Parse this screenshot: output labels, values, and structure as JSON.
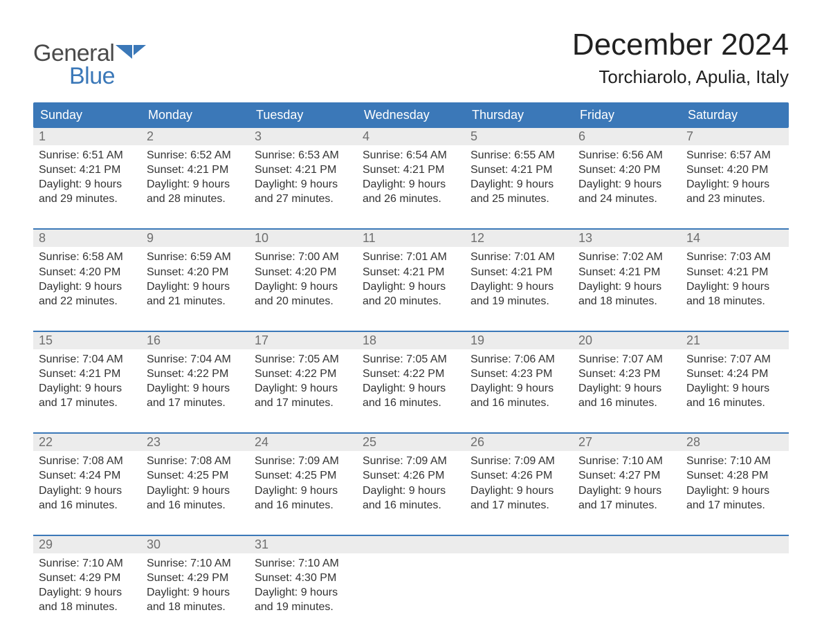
{
  "brand": {
    "word1": "General",
    "word2": "Blue",
    "accent": "#3b78b8",
    "text": "#4a4a4a"
  },
  "title": "December 2024",
  "location": "Torchiarolo, Apulia, Italy",
  "colors": {
    "header_bg": "#3b78b8",
    "header_text": "#ffffff",
    "daynum_bg": "#ececec",
    "daynum_text": "#6e6e6e",
    "body_text": "#323232",
    "week_divider": "#3b78b8",
    "page_bg": "#ffffff"
  },
  "fonts": {
    "title_pt": 44,
    "location_pt": 26,
    "weekday_pt": 18,
    "daynum_pt": 18,
    "cell_pt": 16
  },
  "weekdays": [
    "Sunday",
    "Monday",
    "Tuesday",
    "Wednesday",
    "Thursday",
    "Friday",
    "Saturday"
  ],
  "weeks": [
    [
      {
        "n": "1",
        "sunrise": "6:51 AM",
        "sunset": "4:21 PM",
        "daylight": "9 hours and 29 minutes."
      },
      {
        "n": "2",
        "sunrise": "6:52 AM",
        "sunset": "4:21 PM",
        "daylight": "9 hours and 28 minutes."
      },
      {
        "n": "3",
        "sunrise": "6:53 AM",
        "sunset": "4:21 PM",
        "daylight": "9 hours and 27 minutes."
      },
      {
        "n": "4",
        "sunrise": "6:54 AM",
        "sunset": "4:21 PM",
        "daylight": "9 hours and 26 minutes."
      },
      {
        "n": "5",
        "sunrise": "6:55 AM",
        "sunset": "4:21 PM",
        "daylight": "9 hours and 25 minutes."
      },
      {
        "n": "6",
        "sunrise": "6:56 AM",
        "sunset": "4:20 PM",
        "daylight": "9 hours and 24 minutes."
      },
      {
        "n": "7",
        "sunrise": "6:57 AM",
        "sunset": "4:20 PM",
        "daylight": "9 hours and 23 minutes."
      }
    ],
    [
      {
        "n": "8",
        "sunrise": "6:58 AM",
        "sunset": "4:20 PM",
        "daylight": "9 hours and 22 minutes."
      },
      {
        "n": "9",
        "sunrise": "6:59 AM",
        "sunset": "4:20 PM",
        "daylight": "9 hours and 21 minutes."
      },
      {
        "n": "10",
        "sunrise": "7:00 AM",
        "sunset": "4:20 PM",
        "daylight": "9 hours and 20 minutes."
      },
      {
        "n": "11",
        "sunrise": "7:01 AM",
        "sunset": "4:21 PM",
        "daylight": "9 hours and 20 minutes."
      },
      {
        "n": "12",
        "sunrise": "7:01 AM",
        "sunset": "4:21 PM",
        "daylight": "9 hours and 19 minutes."
      },
      {
        "n": "13",
        "sunrise": "7:02 AM",
        "sunset": "4:21 PM",
        "daylight": "9 hours and 18 minutes."
      },
      {
        "n": "14",
        "sunrise": "7:03 AM",
        "sunset": "4:21 PM",
        "daylight": "9 hours and 18 minutes."
      }
    ],
    [
      {
        "n": "15",
        "sunrise": "7:04 AM",
        "sunset": "4:21 PM",
        "daylight": "9 hours and 17 minutes."
      },
      {
        "n": "16",
        "sunrise": "7:04 AM",
        "sunset": "4:22 PM",
        "daylight": "9 hours and 17 minutes."
      },
      {
        "n": "17",
        "sunrise": "7:05 AM",
        "sunset": "4:22 PM",
        "daylight": "9 hours and 17 minutes."
      },
      {
        "n": "18",
        "sunrise": "7:05 AM",
        "sunset": "4:22 PM",
        "daylight": "9 hours and 16 minutes."
      },
      {
        "n": "19",
        "sunrise": "7:06 AM",
        "sunset": "4:23 PM",
        "daylight": "9 hours and 16 minutes."
      },
      {
        "n": "20",
        "sunrise": "7:07 AM",
        "sunset": "4:23 PM",
        "daylight": "9 hours and 16 minutes."
      },
      {
        "n": "21",
        "sunrise": "7:07 AM",
        "sunset": "4:24 PM",
        "daylight": "9 hours and 16 minutes."
      }
    ],
    [
      {
        "n": "22",
        "sunrise": "7:08 AM",
        "sunset": "4:24 PM",
        "daylight": "9 hours and 16 minutes."
      },
      {
        "n": "23",
        "sunrise": "7:08 AM",
        "sunset": "4:25 PM",
        "daylight": "9 hours and 16 minutes."
      },
      {
        "n": "24",
        "sunrise": "7:09 AM",
        "sunset": "4:25 PM",
        "daylight": "9 hours and 16 minutes."
      },
      {
        "n": "25",
        "sunrise": "7:09 AM",
        "sunset": "4:26 PM",
        "daylight": "9 hours and 16 minutes."
      },
      {
        "n": "26",
        "sunrise": "7:09 AM",
        "sunset": "4:26 PM",
        "daylight": "9 hours and 17 minutes."
      },
      {
        "n": "27",
        "sunrise": "7:10 AM",
        "sunset": "4:27 PM",
        "daylight": "9 hours and 17 minutes."
      },
      {
        "n": "28",
        "sunrise": "7:10 AM",
        "sunset": "4:28 PM",
        "daylight": "9 hours and 17 minutes."
      }
    ],
    [
      {
        "n": "29",
        "sunrise": "7:10 AM",
        "sunset": "4:29 PM",
        "daylight": "9 hours and 18 minutes."
      },
      {
        "n": "30",
        "sunrise": "7:10 AM",
        "sunset": "4:29 PM",
        "daylight": "9 hours and 18 minutes."
      },
      {
        "n": "31",
        "sunrise": "7:10 AM",
        "sunset": "4:30 PM",
        "daylight": "9 hours and 19 minutes."
      },
      null,
      null,
      null,
      null
    ]
  ],
  "labels": {
    "sunrise": "Sunrise:",
    "sunset": "Sunset:",
    "daylight": "Daylight:"
  }
}
